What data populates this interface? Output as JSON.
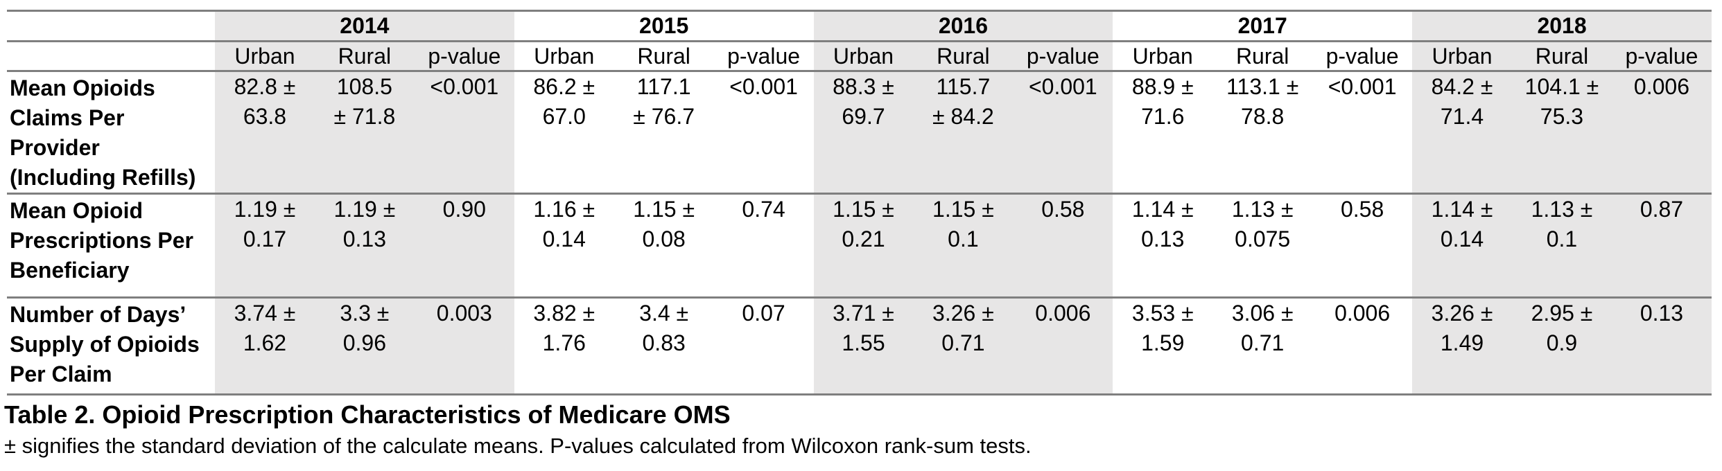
{
  "table": {
    "year_groups": [
      {
        "year": "2014",
        "shaded": true
      },
      {
        "year": "2015",
        "shaded": false
      },
      {
        "year": "2016",
        "shaded": true
      },
      {
        "year": "2017",
        "shaded": false
      },
      {
        "year": "2018",
        "shaded": true
      }
    ],
    "sub_headers": [
      "Urban",
      "Rural",
      "p-value"
    ],
    "rows": [
      {
        "label": "Mean Opioids\nClaims Per\nProvider\n(Including Refills)",
        "cells": [
          [
            "82.8 ±\n63.8",
            "108.5\n± 71.8",
            "<0.001"
          ],
          [
            "86.2 ±\n67.0",
            "117.1\n± 76.7",
            "<0.001"
          ],
          [
            "88.3 ±\n69.7",
            "115.7\n± 84.2",
            "<0.001"
          ],
          [
            "88.9 ±\n71.6",
            "113.1 ±\n78.8",
            "<0.001"
          ],
          [
            "84.2 ±\n71.4",
            "104.1 ±\n75.3",
            "0.006"
          ]
        ]
      },
      {
        "label": "Mean Opioid\nPrescriptions Per\nBeneficiary",
        "cells": [
          [
            "1.19 ±\n0.17",
            "1.19 ±\n0.13",
            "0.90"
          ],
          [
            "1.16 ±\n0.14",
            "1.15 ±\n0.08",
            "0.74"
          ],
          [
            "1.15 ±\n0.21",
            "1.15 ±\n0.1",
            "0.58"
          ],
          [
            "1.14 ±\n0.13",
            "1.13 ±\n0.075",
            "0.58"
          ],
          [
            "1.14 ±\n0.14",
            "1.13 ±\n0.1",
            "0.87"
          ]
        ]
      },
      {
        "label": "Number of Days’\nSupply of Opioids\nPer Claim",
        "cells": [
          [
            "3.74 ±\n1.62",
            "3.3 ±\n0.96",
            "0.003"
          ],
          [
            "3.82 ±\n1.76",
            "3.4 ±\n0.83",
            "0.07"
          ],
          [
            "3.71 ±\n1.55",
            "3.26 ±\n0.71",
            "0.006"
          ],
          [
            "3.53 ±\n1.59",
            "3.06 ±\n0.71",
            "0.006"
          ],
          [
            "3.26 ±\n1.49",
            "2.95 ±\n0.9",
            "0.13"
          ]
        ]
      }
    ]
  },
  "caption": "Table 2. Opioid Prescription Characteristics of Medicare OMS",
  "footnote": "± signifies the standard deviation of the calculate means. P-values calculated from Wilcoxon rank-sum tests.",
  "colors": {
    "shaded_bg": "#e7e6e6",
    "rule": "#7f7f7f"
  }
}
